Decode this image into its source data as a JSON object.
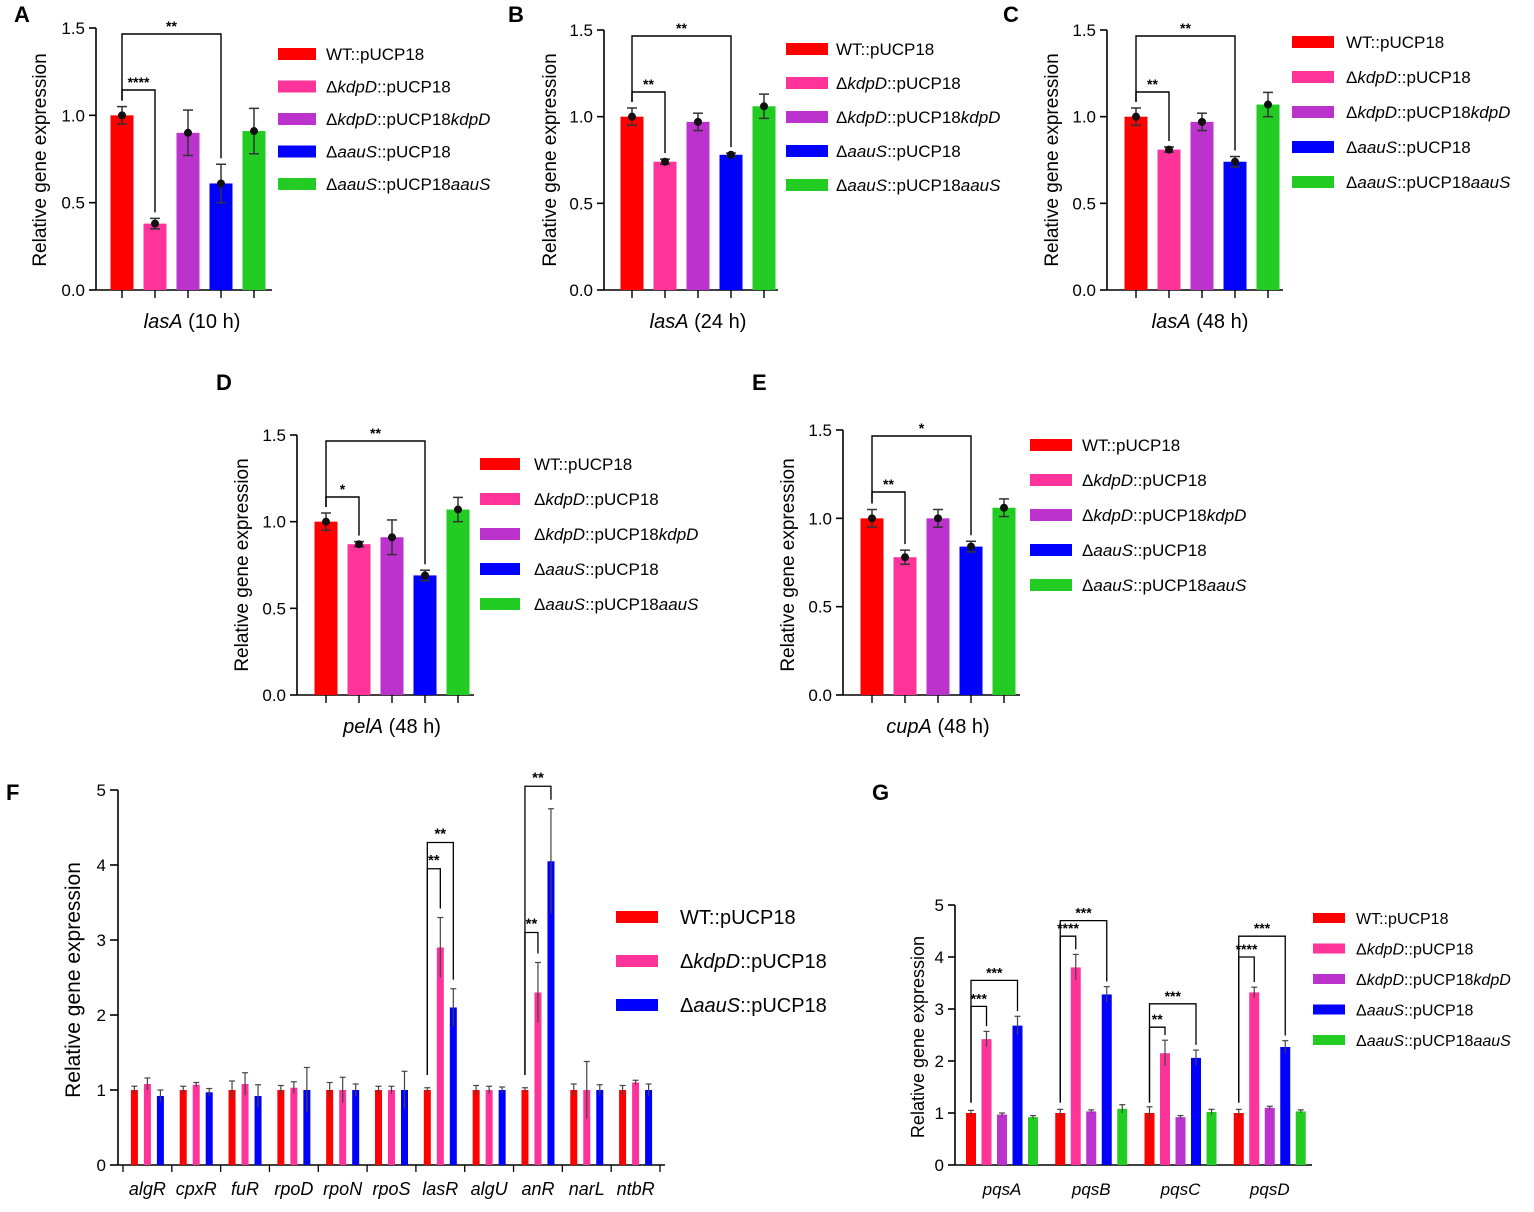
{
  "figure": {
    "legend_labels": {
      "wt": [
        "WT::pUCP18"
      ],
      "kdpD": [
        "Δ",
        {
          "i": "kdpD"
        },
        "::pUCP18"
      ],
      "kdpDc": [
        "Δ",
        {
          "i": "kdpD"
        },
        "::pUCP18",
        {
          "i": "kdpD"
        }
      ],
      "aauS": [
        "Δ",
        {
          "i": "aauS"
        },
        "::pUCP18"
      ],
      "aauSc": [
        "Δ",
        {
          "i": "aauS"
        },
        "::pUCP18",
        {
          "i": "aauS"
        }
      ]
    },
    "colors": {
      "wt": "#ff0000",
      "kdpD": "#ff3399",
      "kdpDc": "#bb33cc",
      "aauS": "#0000ff",
      "aauSc": "#22cc22"
    }
  },
  "chart_data": [
    {
      "id": "A",
      "type": "bar",
      "panel_label": "A",
      "ylabel": "Relative gene expression",
      "ylim": [
        0,
        1.5
      ],
      "yticks": [
        "0.0",
        "0.5",
        "1.0",
        "1.5"
      ],
      "ytick_values": [
        0,
        0.5,
        1.0,
        1.5
      ],
      "xlabel": [
        {
          "i": "lasA"
        },
        " (10 h)"
      ],
      "series": [
        {
          "key": "wt",
          "value": 1.0,
          "error": 0.05
        },
        {
          "key": "kdpD",
          "value": 0.38,
          "error": 0.03
        },
        {
          "key": "kdpDc",
          "value": 0.9,
          "error": 0.13
        },
        {
          "key": "aauS",
          "value": 0.61,
          "error": 0.11
        },
        {
          "key": "aauSc",
          "value": 0.91,
          "error": 0.13
        }
      ],
      "significance": [
        {
          "from": 0,
          "to": 1,
          "label": "****"
        },
        {
          "from": 0,
          "to": 3,
          "label": "**"
        }
      ]
    },
    {
      "id": "B",
      "type": "bar",
      "panel_label": "B",
      "ylabel": "Relative gene expression",
      "ylim": [
        0,
        1.5
      ],
      "yticks": [
        "0.0",
        "0.5",
        "1.0",
        "1.5"
      ],
      "ytick_values": [
        0,
        0.5,
        1.0,
        1.5
      ],
      "xlabel": [
        {
          "i": "lasA"
        },
        " (24 h)"
      ],
      "series": [
        {
          "key": "wt",
          "value": 1.0,
          "error": 0.05
        },
        {
          "key": "kdpD",
          "value": 0.74,
          "error": 0.015
        },
        {
          "key": "kdpDc",
          "value": 0.97,
          "error": 0.05
        },
        {
          "key": "aauS",
          "value": 0.78,
          "error": 0.01
        },
        {
          "key": "aauSc",
          "value": 1.06,
          "error": 0.07
        }
      ],
      "significance": [
        {
          "from": 0,
          "to": 1,
          "label": "**"
        },
        {
          "from": 0,
          "to": 3,
          "label": "**"
        }
      ]
    },
    {
      "id": "C",
      "type": "bar",
      "panel_label": "C",
      "ylabel": "Relative gene expression",
      "ylim": [
        0,
        1.5
      ],
      "yticks": [
        "0.0",
        "0.5",
        "1.0",
        "1.5"
      ],
      "ytick_values": [
        0,
        0.5,
        1.0,
        1.5
      ],
      "xlabel": [
        {
          "i": "lasA"
        },
        " (48 h)"
      ],
      "series": [
        {
          "key": "wt",
          "value": 1.0,
          "error": 0.05
        },
        {
          "key": "kdpD",
          "value": 0.81,
          "error": 0.015
        },
        {
          "key": "kdpDc",
          "value": 0.97,
          "error": 0.05
        },
        {
          "key": "aauS",
          "value": 0.74,
          "error": 0.03
        },
        {
          "key": "aauSc",
          "value": 1.07,
          "error": 0.07
        }
      ],
      "significance": [
        {
          "from": 0,
          "to": 1,
          "label": "**"
        },
        {
          "from": 0,
          "to": 3,
          "label": "**"
        }
      ]
    },
    {
      "id": "D",
      "type": "bar",
      "panel_label": "D",
      "ylabel": "Relative gene expression",
      "ylim": [
        0,
        1.5
      ],
      "yticks": [
        "0.0",
        "0.5",
        "1.0",
        "1.5"
      ],
      "ytick_values": [
        0,
        0.5,
        1.0,
        1.5
      ],
      "xlabel": [
        {
          "i": "pelA"
        },
        " (48 h)"
      ],
      "series": [
        {
          "key": "wt",
          "value": 1.0,
          "error": 0.05
        },
        {
          "key": "kdpD",
          "value": 0.87,
          "error": 0.015
        },
        {
          "key": "kdpDc",
          "value": 0.91,
          "error": 0.1
        },
        {
          "key": "aauS",
          "value": 0.69,
          "error": 0.03
        },
        {
          "key": "aauSc",
          "value": 1.07,
          "error": 0.07
        }
      ],
      "significance": [
        {
          "from": 0,
          "to": 1,
          "label": "*"
        },
        {
          "from": 0,
          "to": 3,
          "label": "**"
        }
      ]
    },
    {
      "id": "E",
      "type": "bar",
      "panel_label": "E",
      "ylabel": "Relative gene expression",
      "ylim": [
        0,
        1.5
      ],
      "yticks": [
        "0.0",
        "0.5",
        "1.0",
        "1.5"
      ],
      "ytick_values": [
        0,
        0.5,
        1.0,
        1.5
      ],
      "xlabel": [
        {
          "i": "cupA"
        },
        " (48 h)"
      ],
      "series": [
        {
          "key": "wt",
          "value": 1.0,
          "error": 0.05
        },
        {
          "key": "kdpD",
          "value": 0.78,
          "error": 0.04
        },
        {
          "key": "kdpDc",
          "value": 1.0,
          "error": 0.05
        },
        {
          "key": "aauS",
          "value": 0.84,
          "error": 0.03
        },
        {
          "key": "aauSc",
          "value": 1.06,
          "error": 0.05
        }
      ],
      "significance": [
        {
          "from": 0,
          "to": 1,
          "label": "**"
        },
        {
          "from": 0,
          "to": 3,
          "label": "*"
        }
      ]
    },
    {
      "id": "F",
      "type": "bar",
      "panel_label": "F",
      "ylabel": "Relative gene expression",
      "ylim": [
        0,
        5
      ],
      "yticks": [
        "0",
        "1",
        "2",
        "3",
        "4",
        "5"
      ],
      "ytick_values": [
        0,
        1,
        2,
        3,
        4,
        5
      ],
      "categories": [
        "algR",
        "cpxR",
        "fuR",
        "rpoD",
        "rpoN",
        "rpoS",
        "lasR",
        "algU",
        "anR",
        "narL",
        "ntbR"
      ],
      "legend": [
        "wt",
        "kdpD",
        "aauS"
      ],
      "series": [
        {
          "key": "wt",
          "values": [
            1,
            1,
            1,
            1,
            1,
            1,
            1,
            1,
            1,
            1,
            1
          ],
          "errors": [
            0.05,
            0.05,
            0.12,
            0.06,
            0.1,
            0.05,
            0.03,
            0.06,
            0.03,
            0.08,
            0.06
          ]
        },
        {
          "key": "kdpD",
          "values": [
            1.08,
            1.07,
            1.08,
            1.03,
            1.0,
            1.0,
            2.9,
            1.0,
            2.3,
            1.0,
            1.1
          ],
          "errors": [
            0.08,
            0.03,
            0.15,
            0.08,
            0.17,
            0.05,
            0.4,
            0.05,
            0.4,
            0.38,
            0.03
          ]
        },
        {
          "key": "aauS",
          "values": [
            0.92,
            0.97,
            0.92,
            1.0,
            1.0,
            1.0,
            2.1,
            1.0,
            4.05,
            1.0,
            1.0
          ],
          "errors": [
            0.08,
            0.05,
            0.15,
            0.3,
            0.08,
            0.25,
            0.25,
            0.04,
            0.7,
            0.07,
            0.08
          ]
        }
      ],
      "significance": [
        {
          "cat": 6,
          "from": 0,
          "to": 1,
          "label": "**",
          "y": 3.95
        },
        {
          "cat": 6,
          "from": 0,
          "to": 2,
          "label": "**",
          "y": 4.3
        },
        {
          "cat": 8,
          "from": 0,
          "to": 1,
          "label": "**",
          "y": 3.1
        },
        {
          "cat": 8,
          "from": 0,
          "to": 2,
          "label": "**",
          "y": 5.05
        }
      ]
    },
    {
      "id": "G",
      "type": "bar",
      "panel_label": "G",
      "ylabel": "Relative gene expression",
      "ylim": [
        0,
        5
      ],
      "yticks": [
        "0",
        "1",
        "2",
        "3",
        "4",
        "5"
      ],
      "ytick_values": [
        0,
        1,
        2,
        3,
        4,
        5
      ],
      "categories": [
        "pqsA",
        "pqsB",
        "pqsC",
        "pqsD"
      ],
      "legend": [
        "wt",
        "kdpD",
        "kdpDc",
        "aauS",
        "aauSc"
      ],
      "series": [
        {
          "key": "wt",
          "values": [
            1.0,
            1.0,
            1.0,
            1.0
          ],
          "errors": [
            0.05,
            0.07,
            0.12,
            0.07
          ]
        },
        {
          "key": "kdpD",
          "values": [
            2.42,
            3.8,
            2.15,
            3.32
          ],
          "errors": [
            0.15,
            0.25,
            0.25,
            0.1
          ]
        },
        {
          "key": "kdpDc",
          "values": [
            0.97,
            1.03,
            0.92,
            1.1
          ],
          "errors": [
            0.03,
            0.03,
            0.03,
            0.03
          ]
        },
        {
          "key": "aauS",
          "values": [
            2.68,
            3.28,
            2.06,
            2.27
          ],
          "errors": [
            0.18,
            0.15,
            0.15,
            0.12
          ]
        },
        {
          "key": "aauSc",
          "values": [
            0.92,
            1.08,
            1.02,
            1.03
          ],
          "errors": [
            0.03,
            0.08,
            0.05,
            0.03
          ]
        }
      ],
      "significance": [
        {
          "cat": 0,
          "from": 0,
          "to": 1,
          "label": "***",
          "y": 3.05
        },
        {
          "cat": 0,
          "from": 0,
          "to": 3,
          "label": "***",
          "y": 3.55
        },
        {
          "cat": 1,
          "from": 0,
          "to": 1,
          "label": "****",
          "y": 4.4
        },
        {
          "cat": 1,
          "from": 0,
          "to": 3,
          "label": "***",
          "y": 4.7
        },
        {
          "cat": 2,
          "from": 0,
          "to": 1,
          "label": "**",
          "y": 2.65
        },
        {
          "cat": 2,
          "from": 0,
          "to": 3,
          "label": "***",
          "y": 3.1
        },
        {
          "cat": 3,
          "from": 0,
          "to": 1,
          "label": "****",
          "y": 4.0
        },
        {
          "cat": 3,
          "from": 0,
          "to": 3,
          "label": "***",
          "y": 4.4
        }
      ]
    }
  ]
}
